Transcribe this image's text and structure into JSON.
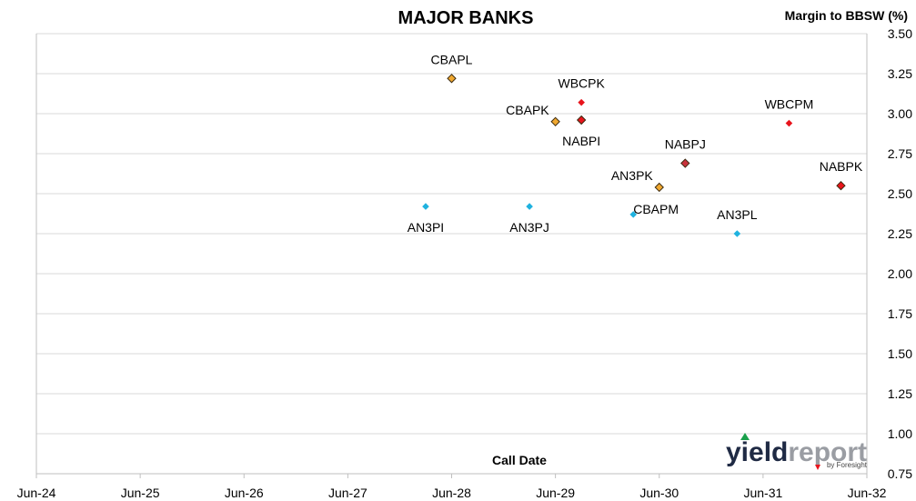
{
  "chart_data": {
    "type": "scatter",
    "title": "MAJOR BANKS",
    "ylabel": "Margin to BBSW (%)",
    "xlabel": "Call Date",
    "ylim": [
      0.75,
      3.5
    ],
    "yticks": [
      "3.50",
      "3.25",
      "3.00",
      "2.75",
      "2.50",
      "2.25",
      "2.00",
      "1.75",
      "1.50",
      "1.25",
      "1.00",
      "0.75"
    ],
    "xticks": [
      "Jun-24",
      "Jun-25",
      "Jun-26",
      "Jun-27",
      "Jun-28",
      "Jun-29",
      "Jun-30",
      "Jun-31",
      "Jun-32"
    ],
    "grid": true,
    "points": [
      {
        "label": "AN3PI",
        "x": "Mar-28",
        "y": 2.42,
        "color": "#1fb2df",
        "outline": false,
        "label_pos": "below"
      },
      {
        "label": "AN3PJ",
        "x": "Mar-29",
        "y": 2.42,
        "color": "#1fb2df",
        "outline": false,
        "label_pos": "below"
      },
      {
        "label": "CBAPL",
        "x": "Jun-28",
        "y": 3.22,
        "color": "#f0a830",
        "outline": true,
        "label_pos": "above"
      },
      {
        "label": "CBAPK",
        "x": "Jun-29",
        "y": 2.95,
        "color": "#f0a830",
        "outline": true,
        "label_pos": "left"
      },
      {
        "label": "WBCPK",
        "x": "Sep-29",
        "y": 3.07,
        "color": "#e8141c",
        "outline": false,
        "label_pos": "above"
      },
      {
        "label": "NABPI",
        "x": "Sep-29",
        "y": 2.96,
        "color": "#e8141c",
        "outline": true,
        "label_pos": "below"
      },
      {
        "label": "CBAPM",
        "x": "Mar-30",
        "y": 2.37,
        "color": "#1fb2df",
        "outline": false,
        "label_pos": "right"
      },
      {
        "label": "AN3PK",
        "x": "Jun-30",
        "y": 2.54,
        "color": "#f0a830",
        "outline": true,
        "label_pos": "left"
      },
      {
        "label": "NABPJ",
        "x": "Sep-30",
        "y": 2.69,
        "color": "#c8323c",
        "outline": true,
        "label_pos": "above"
      },
      {
        "label": "AN3PL",
        "x": "Mar-31",
        "y": 2.25,
        "color": "#1fb2df",
        "outline": false,
        "label_pos": "above"
      },
      {
        "label": "WBCPM",
        "x": "Sep-31",
        "y": 2.94,
        "color": "#e8141c",
        "outline": false,
        "label_pos": "above"
      },
      {
        "label": "NABPK",
        "x": "Mar-32",
        "y": 2.55,
        "color": "#e8141c",
        "outline": true,
        "label_pos": "above"
      }
    ]
  },
  "logo": {
    "main_dark": "yield",
    "main_light": "report",
    "sub": "by Foresight",
    "colors": {
      "dark": "#1f2a44",
      "light": "#9a9da3",
      "green": "#19a04b",
      "red": "#e8141c"
    }
  }
}
